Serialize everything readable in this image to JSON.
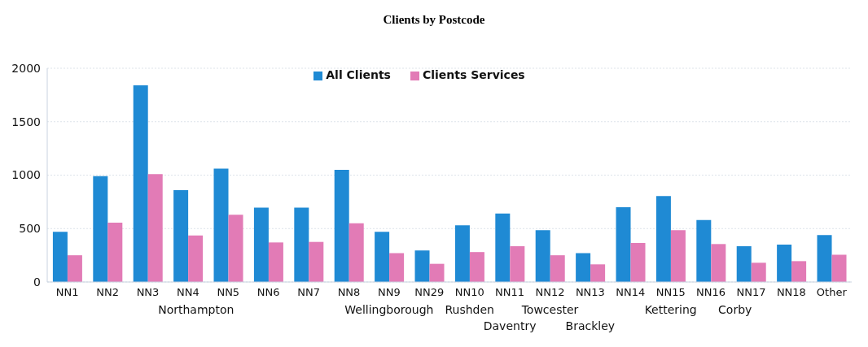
{
  "chart_data": {
    "type": "bar",
    "title": "Clients by Postcode",
    "categories": [
      "NN1",
      "NN2",
      "NN3",
      "NN4",
      "NN5",
      "NN6",
      "NN7",
      "NN8",
      "NN9",
      "NN29",
      "NN10",
      "NN11",
      "NN12",
      "NN13",
      "NN14",
      "NN15",
      "NN16",
      "NN17",
      "NN18",
      "Other"
    ],
    "series": [
      {
        "name": "All Clients",
        "color": "#1f8ad4",
        "values": [
          470,
          990,
          1840,
          860,
          1060,
          695,
          695,
          1050,
          470,
          295,
          530,
          640,
          485,
          270,
          700,
          805,
          580,
          335,
          350,
          440
        ]
      },
      {
        "name": "Clients Services",
        "color": "#e27bb6",
        "values": [
          250,
          555,
          1010,
          435,
          630,
          370,
          375,
          550,
          270,
          170,
          280,
          335,
          250,
          165,
          365,
          485,
          355,
          180,
          195,
          255
        ]
      }
    ],
    "ylim": [
      0,
      2000
    ],
    "yticks": [
      0,
      500,
      1000,
      1500,
      2000
    ],
    "grid": "y",
    "legend": "top",
    "annotations": [
      "Northampton",
      "Wellingborough",
      "Rushden",
      "Daventry",
      "Towcester",
      "Brackley",
      "Kettering",
      "Corby"
    ]
  }
}
